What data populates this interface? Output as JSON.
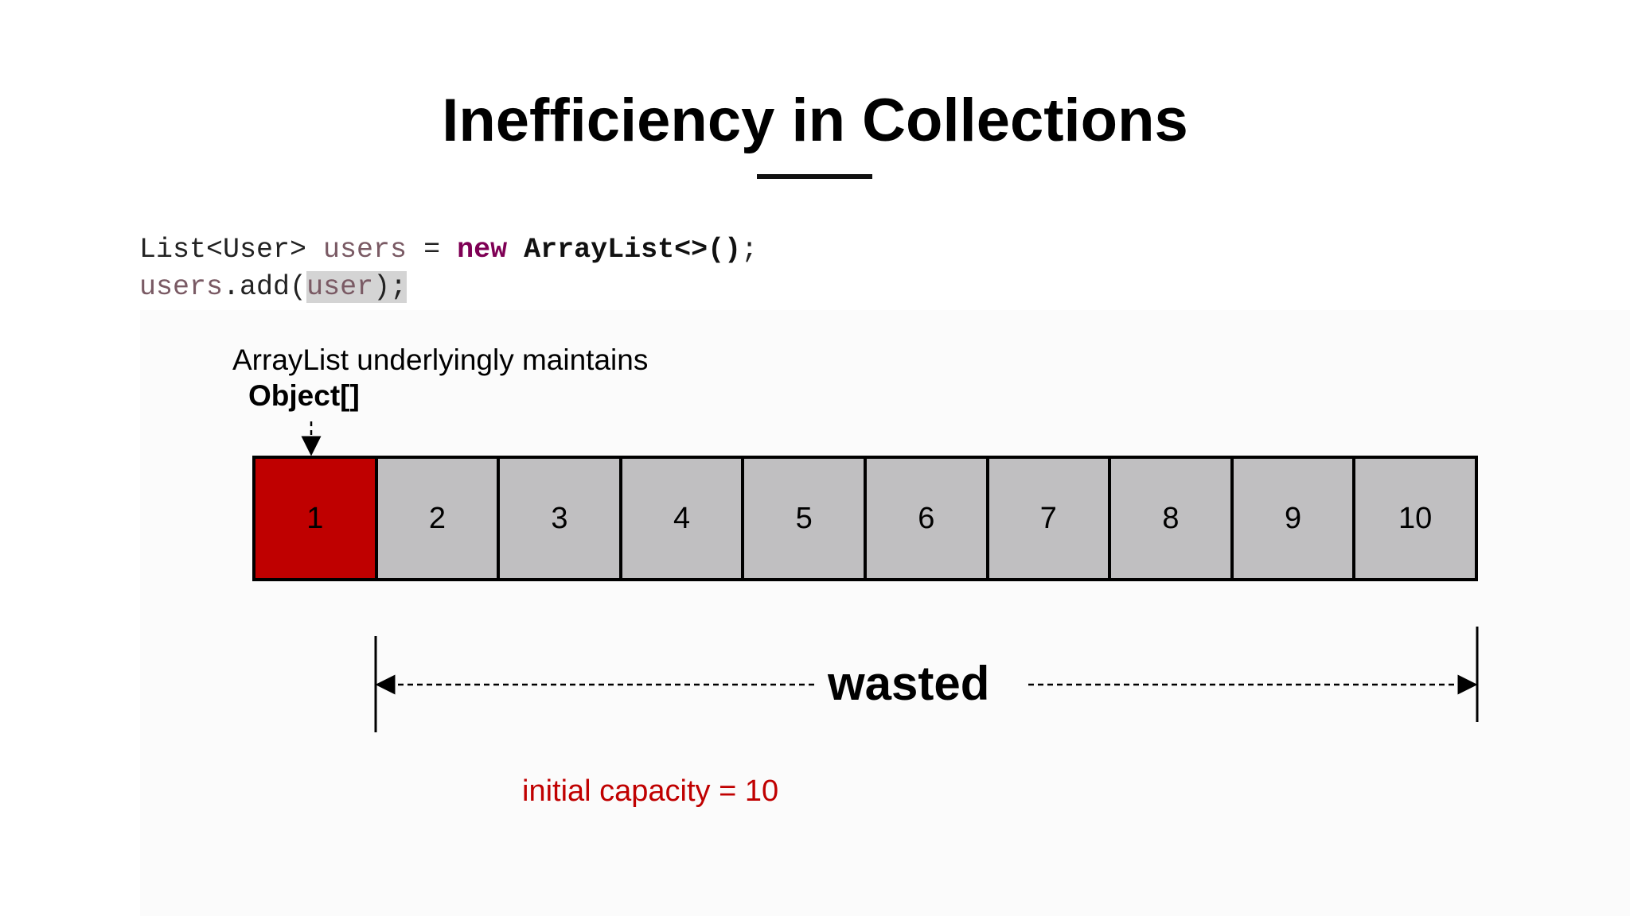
{
  "title": "Inefficiency in Collections",
  "code": {
    "line1": {
      "type": "List<User> ",
      "var": "users",
      "assign": " = ",
      "kw": "new",
      "ctor": " ArrayList<>()",
      "end": ";"
    },
    "line2": {
      "var": "users",
      "call": ".add(",
      "arg": "user",
      "end": ");"
    }
  },
  "annotation": {
    "line1": "ArrayList underlyingly maintains",
    "line2": "Object[]"
  },
  "array": {
    "cells": [
      "1",
      "2",
      "3",
      "4",
      "5",
      "6",
      "7",
      "8",
      "9",
      "10"
    ],
    "used_count": 1,
    "colors": {
      "used": "#bf0000",
      "empty": "#c0bfc1"
    }
  },
  "wasted_label": "wasted",
  "capacity_label": "initial capacity = 10",
  "colors": {
    "keyword": "#7f0055",
    "variable": "#7a5a64",
    "capacity": "#c00000"
  }
}
